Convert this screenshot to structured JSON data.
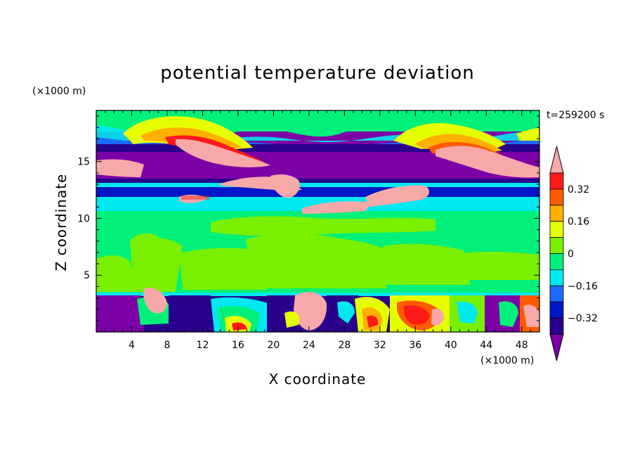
{
  "chart_data": {
    "type": "heatmap",
    "title": "potential temperature deviation",
    "xlabel": "X coordinate",
    "ylabel": "Z coordinate",
    "x_unit": "(×1000 m)",
    "y_unit": "(×1000 m)",
    "time_label": "t=259200 s",
    "xlim": [
      0,
      50
    ],
    "ylim": [
      0,
      19.5
    ],
    "x_ticks": [
      4,
      8,
      12,
      16,
      20,
      24,
      28,
      32,
      36,
      40,
      44,
      48
    ],
    "y_ticks": [
      5,
      10,
      15
    ],
    "colorbar": {
      "levels": [
        -0.4,
        -0.32,
        -0.24,
        -0.16,
        -0.08,
        0,
        0.08,
        0.16,
        0.24,
        0.32,
        0.4
      ],
      "tick_labels": [
        "0.32",
        "0.16",
        "0",
        "−0.16",
        "−0.32"
      ],
      "tick_values": [
        0.32,
        0.16,
        0,
        -0.16,
        -0.32
      ],
      "colors": [
        "#7B00A6",
        "#29008C",
        "#0017C8",
        "#1B6BFF",
        "#00E8F0",
        "#00F07A",
        "#78F000",
        "#E6FF00",
        "#FFB000",
        "#FF5A00",
        "#FF1A1A",
        "#F7A8A8"
      ],
      "extend": "both"
    },
    "layers": [
      {
        "z_from": 19.5,
        "z_to": 18.2,
        "value": 0.0,
        "note": "green top band"
      },
      {
        "z_from": 18.2,
        "z_to": 15.5,
        "value": -0.4,
        "note": "purple/pink mixed wave layer"
      },
      {
        "z_from": 15.5,
        "z_to": 13.0,
        "value": -0.4
      },
      {
        "z_from": 13.0,
        "z_to": 12.0,
        "value": -0.28
      },
      {
        "z_from": 12.0,
        "z_to": 11.0,
        "value": -0.12
      },
      {
        "z_from": 11.0,
        "z_to": 3.6,
        "value": 0.04
      },
      {
        "z_from": 3.6,
        "z_to": 0,
        "value": 0.0,
        "note": "turbulent boundary layer"
      }
    ]
  }
}
